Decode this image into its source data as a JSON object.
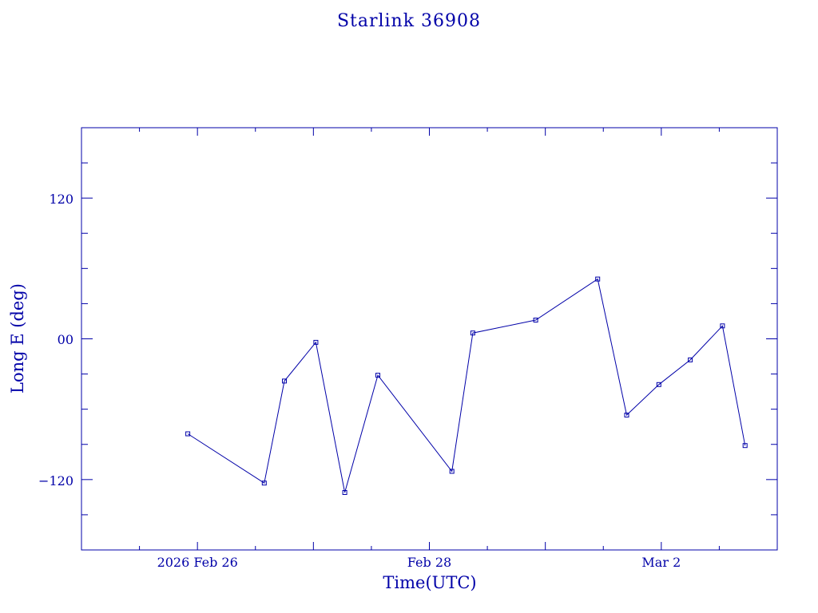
{
  "chart_data": {
    "type": "line",
    "title": "Starlink 36908",
    "xlabel": "Time(UTC)",
    "ylabel": "Long E (deg)",
    "x_ticks": [
      "2026 Feb 26",
      "Feb 28",
      "Mar  2"
    ],
    "y_ticks": [
      "120",
      "00",
      "−120"
    ],
    "ylim": [
      -180,
      180
    ],
    "xlim": [
      "2026-02-25T00:00",
      "2026-03-03T00:00"
    ],
    "grid": false,
    "series": [
      {
        "points": [
          {
            "x": "2026-02-25T22:00",
            "y": -81
          },
          {
            "x": "2026-02-26T13:50",
            "y": -123
          },
          {
            "x": "2026-02-26T18:00",
            "y": -36
          },
          {
            "x": "2026-02-27T00:30",
            "y": -3
          },
          {
            "x": "2026-02-27T06:30",
            "y": -131
          },
          {
            "x": "2026-02-27T13:20",
            "y": -31
          },
          {
            "x": "2026-02-28T04:40",
            "y": -113
          },
          {
            "x": "2026-02-28T09:00",
            "y": 5
          },
          {
            "x": "2026-02-28T22:00",
            "y": 16
          },
          {
            "x": "2026-03-01T10:50",
            "y": 51
          },
          {
            "x": "2026-03-01T16:50",
            "y": -65
          },
          {
            "x": "2026-03-01T23:30",
            "y": -39
          },
          {
            "x": "2026-03-02T06:00",
            "y": -18
          },
          {
            "x": "2026-03-02T12:40",
            "y": 11
          },
          {
            "x": "2026-03-02T17:20",
            "y": -91
          }
        ]
      }
    ]
  },
  "colors": {
    "ink": "#0000a8",
    "background": "#ffffff"
  }
}
